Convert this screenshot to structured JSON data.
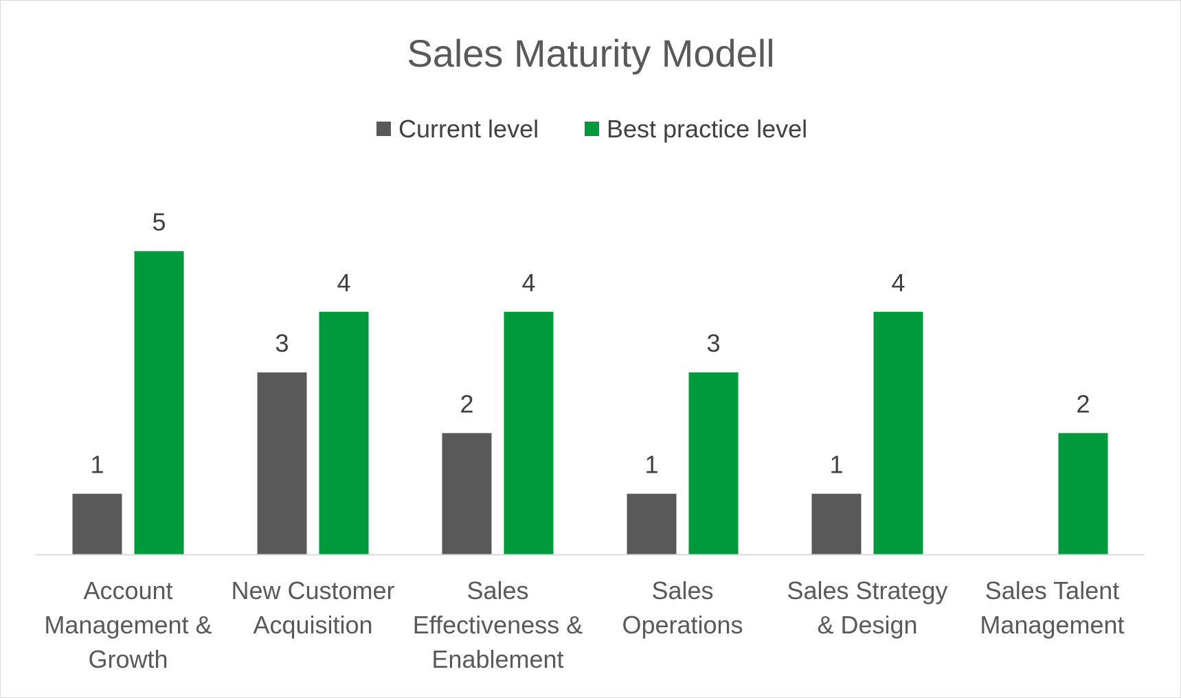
{
  "chart_data": {
    "type": "bar",
    "title": "Sales Maturity Modell",
    "xlabel": "",
    "ylabel": "",
    "ylim": [
      0,
      5
    ],
    "grid": false,
    "legend_position": "top",
    "categories": [
      [
        "Account",
        "Management &",
        "Growth"
      ],
      [
        "New Customer",
        "Acquisition"
      ],
      [
        "Sales",
        "Effectiveness &",
        "Enablement"
      ],
      [
        "Sales",
        "Operations"
      ],
      [
        "Sales Strategy",
        "& Design"
      ],
      [
        "Sales Talent",
        "Management"
      ]
    ],
    "series": [
      {
        "name": "Current level",
        "color": "#595959",
        "values": [
          1,
          3,
          2,
          1,
          1,
          null
        ]
      },
      {
        "name": "Best practice level",
        "color": "#009a3d",
        "values": [
          5,
          4,
          4,
          3,
          4,
          2
        ]
      }
    ],
    "data_labels": true
  }
}
